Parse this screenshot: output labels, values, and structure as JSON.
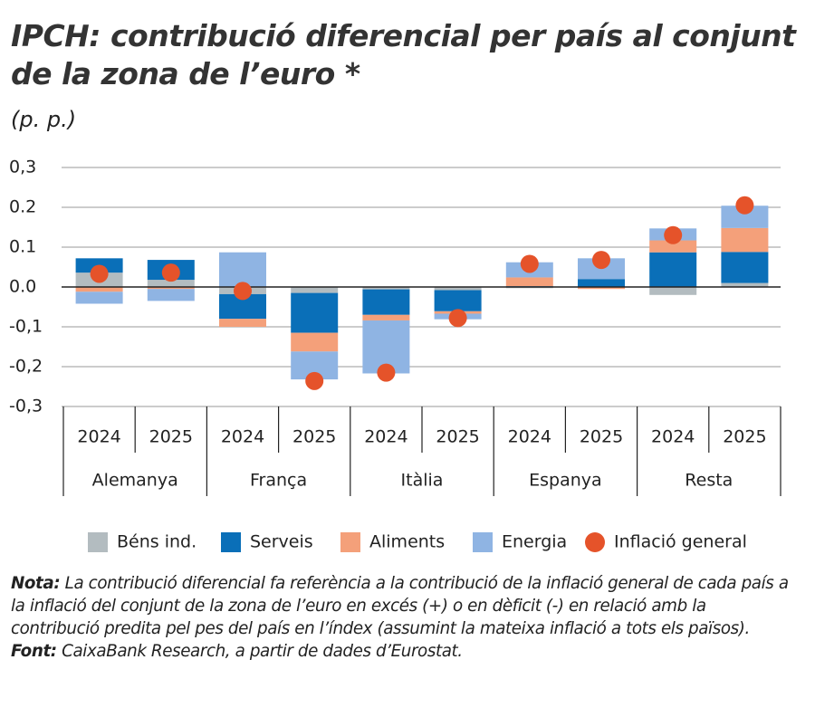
{
  "chart_data": {
    "type": "stacked-bar",
    "title": [
      "IPCH: contribució diferencial per país al conjunt",
      "de la zona de l’euro *"
    ],
    "y_label": "(p. p.)",
    "categories": [
      "2024",
      "2025",
      "2024",
      "2025",
      "2024",
      "2025",
      "2024",
      "2025",
      "2024",
      "2025"
    ],
    "groups": [
      "Alemanya",
      "França",
      "Itàlia",
      "Espanya",
      "Resta"
    ],
    "ylim": [
      -0.3,
      0.3
    ],
    "yticks": [
      {
        "value": -0.3,
        "label": "-0,3"
      },
      {
        "value": -0.2,
        "label": "-0,2"
      },
      {
        "value": -0.1,
        "label": "-0,1"
      },
      {
        "value": 0,
        "label": "0.0"
      },
      0.1,
      0.2,
      {
        "value": 0.3,
        "label": "0,3"
      }
    ],
    "grid": true,
    "series": [
      {
        "name": "Béns ind.",
        "color": "#b3bcc0",
        "values": [
          0.036,
          0.018,
          -0.018,
          -0.015,
          -0.006,
          -0.008,
          -0.003,
          0,
          -0.02,
          0.01
        ]
      },
      {
        "name": "Serveis",
        "color": "#0a6fb8",
        "values": [
          0.036,
          0.05,
          -0.062,
          -0.1,
          -0.064,
          -0.053,
          0.002,
          0.02,
          0.087,
          0.078
        ]
      },
      {
        "name": "Aliments",
        "color": "#f4a07a",
        "values": [
          -0.012,
          -0.005,
          -0.02,
          -0.047,
          -0.014,
          -0.006,
          0.022,
          -0.005,
          0.03,
          0.06
        ]
      },
      {
        "name": "Energia",
        "color": "#8fb4e3",
        "values": [
          -0.03,
          -0.03,
          0.087,
          -0.07,
          -0.133,
          -0.014,
          0.038,
          0.052,
          0.03,
          0.056
        ]
      }
    ],
    "markers": {
      "name": "Inflació general",
      "color": "#e5532a",
      "values": [
        0.033,
        0.036,
        -0.01,
        -0.236,
        -0.215,
        -0.078,
        0.058,
        0.068,
        0.13,
        0.205
      ]
    },
    "note_label": "Nota:",
    "note": "La contribució diferencial fa referència a la contribució de la inflació general de cada país a la inflació del conjunt de la zona de l’euro en excés (+) o en dèficit (-) en relació amb la contribució predita pel pes del país en l’índex (assumint la mateixa inflació a tots els països).",
    "source_label": "Font:",
    "source": "CaixaBank Research, a partir de dades d’Eurostat."
  }
}
